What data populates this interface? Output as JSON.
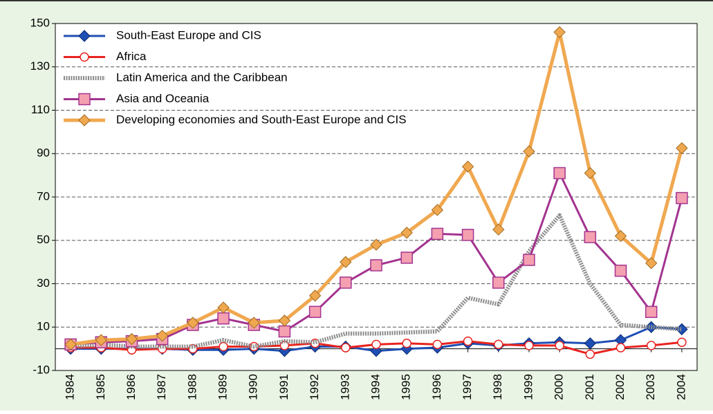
{
  "chart_data": {
    "type": "line",
    "categories": [
      "1984",
      "1985",
      "1986",
      "1987",
      "1988",
      "1989",
      "1990",
      "1991",
      "1992",
      "1993",
      "1994",
      "1995",
      "1996",
      "1997",
      "1998",
      "1999",
      "2000",
      "2001",
      "2002",
      "2003",
      "2004"
    ],
    "series": [
      {
        "name": "South-East Europe and CIS",
        "color": "#1f4fb4",
        "marker": "diamond",
        "values": [
          0,
          0,
          0,
          0,
          -0.5,
          -0.5,
          0,
          -1,
          1,
          1,
          -1,
          0,
          0.5,
          2.5,
          1.5,
          2.5,
          3,
          2.5,
          4,
          10,
          9
        ]
      },
      {
        "name": "Africa",
        "color": "#e8231f",
        "marker": "circle",
        "values": [
          0.5,
          0.5,
          -0.5,
          0,
          0,
          1,
          1,
          1.5,
          2.5,
          0.5,
          2,
          2.5,
          2,
          3.5,
          2,
          1.5,
          1.5,
          -2.5,
          0.5,
          1.5,
          3
        ]
      },
      {
        "name": "Latin America and the Caribbean",
        "color": "#8c8c8c",
        "marker": "none",
        "values": [
          1,
          2,
          1,
          1,
          1,
          4,
          1,
          3.5,
          3,
          7,
          7,
          7.5,
          8,
          23.5,
          20.5,
          45,
          61.5,
          30,
          11,
          10,
          9
        ]
      },
      {
        "name": "Asia and Oceania",
        "color": "#a3338f",
        "marker": "square",
        "values": [
          2,
          3,
          3.5,
          4.5,
          11,
          14,
          11,
          8,
          17,
          30.5,
          38.5,
          42,
          53,
          52.5,
          30.5,
          41,
          81,
          51.5,
          36,
          17,
          69.5
        ]
      },
      {
        "name": "Developing economies and South-East Europe and CIS",
        "color": "#f0a850",
        "marker": "diamond",
        "values": [
          2,
          4,
          4.5,
          6,
          12,
          19,
          12,
          13,
          24.5,
          40,
          48,
          53.5,
          64,
          84,
          55,
          91,
          146,
          81,
          52,
          39.5,
          92.5
        ]
      }
    ],
    "ylim": [
      -10,
      150
    ],
    "yticks": [
      -10,
      10,
      30,
      50,
      70,
      90,
      110,
      130,
      150
    ],
    "grid": true
  }
}
